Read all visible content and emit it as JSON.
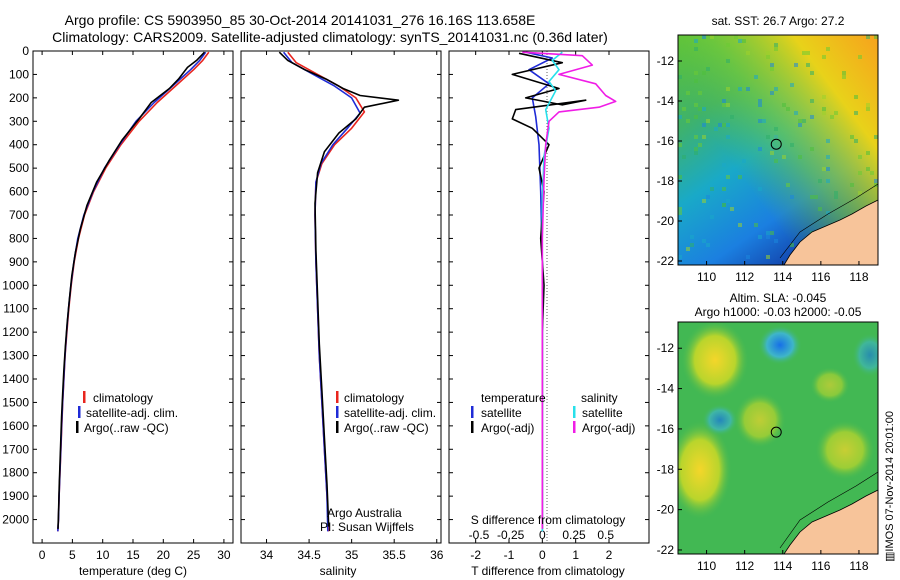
{
  "header": {
    "title_line1": "Argo profile: CS 5903950_85 30-Oct-2014 20141031_276 16.16S 113.658E",
    "title_line2": "Climatology: CARS2009. Satellite-adjusted climatology: synTS_20141031.nc (0.36d later)"
  },
  "colors": {
    "climatology": "#e8251e",
    "satellite": "#1f2bd6",
    "argo": "#000000",
    "sal_satellite": "#27e0ea",
    "sal_argo": "#f01de6",
    "land": "#f7c49a"
  },
  "chart_data": [
    {
      "type": "line",
      "panel": "temperature",
      "xlabel": "temperature (deg C)",
      "ylabel": "",
      "xlim": [
        -1.5,
        31.5
      ],
      "ylim": [
        2100,
        0
      ],
      "x_ticks": [
        0,
        5,
        10,
        15,
        20,
        25,
        30
      ],
      "y_ticks": [
        0,
        100,
        200,
        300,
        400,
        500,
        600,
        700,
        800,
        900,
        1000,
        1100,
        1200,
        1300,
        1400,
        1500,
        1600,
        1700,
        1800,
        1900,
        2000
      ],
      "legend": [
        "climatology",
        "satellite-adj. clim.",
        "Argo(..raw -QC)"
      ],
      "series": [
        {
          "name": "climatology",
          "color": "#e8251e",
          "points": [
            [
              27.5,
              5
            ],
            [
              26.5,
              40
            ],
            [
              25,
              80
            ],
            [
              22,
              150
            ],
            [
              19,
              220
            ],
            [
              16,
              300
            ],
            [
              13,
              400
            ],
            [
              10.5,
              500
            ],
            [
              8.5,
              600
            ],
            [
              7,
              700
            ],
            [
              6,
              800
            ],
            [
              5.3,
              900
            ],
            [
              4.8,
              1000
            ],
            [
              4.4,
              1100
            ],
            [
              4.1,
              1200
            ],
            [
              3.8,
              1300
            ],
            [
              3.6,
              1400
            ],
            [
              3.4,
              1500
            ],
            [
              3.25,
              1600
            ],
            [
              3.1,
              1700
            ],
            [
              2.95,
              1800
            ],
            [
              2.8,
              1900
            ],
            [
              2.7,
              2000
            ],
            [
              2.6,
              2050
            ]
          ]
        },
        {
          "name": "satellite-adj. clim.",
          "color": "#1f2bd6",
          "points": [
            [
              27,
              5
            ],
            [
              26,
              40
            ],
            [
              24.5,
              80
            ],
            [
              21.5,
              150
            ],
            [
              18.5,
              220
            ],
            [
              15.5,
              300
            ],
            [
              12.8,
              400
            ],
            [
              10.3,
              500
            ],
            [
              8.4,
              600
            ],
            [
              6.9,
              700
            ],
            [
              5.9,
              800
            ],
            [
              5.25,
              900
            ],
            [
              4.75,
              1000
            ],
            [
              4.35,
              1100
            ],
            [
              4.05,
              1200
            ],
            [
              3.78,
              1300
            ],
            [
              3.58,
              1400
            ],
            [
              3.38,
              1500
            ],
            [
              3.22,
              1600
            ],
            [
              3.08,
              1700
            ],
            [
              2.94,
              1800
            ],
            [
              2.8,
              1900
            ],
            [
              2.7,
              2000
            ],
            [
              2.6,
              2050
            ]
          ]
        },
        {
          "name": "Argo(..raw -QC)",
          "color": "#000000",
          "points": [
            [
              26.8,
              5
            ],
            [
              25.5,
              40
            ],
            [
              24,
              70
            ],
            [
              22.5,
              120
            ],
            [
              21,
              160
            ],
            [
              18,
              220
            ],
            [
              16,
              290
            ],
            [
              13.2,
              380
            ],
            [
              11,
              470
            ],
            [
              9,
              560
            ],
            [
              7.4,
              660
            ],
            [
              6.3,
              760
            ],
            [
              5.5,
              860
            ],
            [
              4.9,
              960
            ],
            [
              4.5,
              1060
            ],
            [
              4.15,
              1160
            ],
            [
              3.85,
              1260
            ],
            [
              3.6,
              1360
            ],
            [
              3.4,
              1460
            ],
            [
              3.22,
              1560
            ],
            [
              3.08,
              1660
            ],
            [
              2.95,
              1760
            ],
            [
              2.82,
              1860
            ],
            [
              2.72,
              1960
            ],
            [
              2.62,
              2040
            ]
          ]
        }
      ]
    },
    {
      "type": "line",
      "panel": "salinity",
      "xlabel": "salinity",
      "ylabel": "",
      "xlim": [
        33.7,
        36.05
      ],
      "ylim": [
        2100,
        0
      ],
      "x_ticks": [
        34,
        34.5,
        35,
        35.5,
        36
      ],
      "legend": [
        "climatology",
        "satellite-adj. clim.",
        "Argo(..raw -QC)"
      ],
      "annotation": [
        "Argo Australia",
        "PI: Susan Wijffels"
      ],
      "series": [
        {
          "name": "climatology",
          "color": "#e8251e",
          "points": [
            [
              34.25,
              5
            ],
            [
              34.35,
              50
            ],
            [
              34.6,
              100
            ],
            [
              34.85,
              150
            ],
            [
              35.05,
              200
            ],
            [
              35.15,
              260
            ],
            [
              35.0,
              330
            ],
            [
              34.8,
              400
            ],
            [
              34.65,
              480
            ],
            [
              34.58,
              560
            ],
            [
              34.57,
              700
            ],
            [
              34.58,
              900
            ],
            [
              34.6,
              1100
            ],
            [
              34.62,
              1300
            ],
            [
              34.65,
              1500
            ],
            [
              34.68,
              1700
            ],
            [
              34.71,
              1900
            ],
            [
              34.73,
              2050
            ]
          ]
        },
        {
          "name": "satellite-adj. clim.",
          "color": "#1f2bd6",
          "points": [
            [
              34.2,
              5
            ],
            [
              34.3,
              50
            ],
            [
              34.55,
              100
            ],
            [
              34.8,
              150
            ],
            [
              35.0,
              200
            ],
            [
              35.1,
              265
            ],
            [
              34.95,
              330
            ],
            [
              34.78,
              400
            ],
            [
              34.64,
              480
            ],
            [
              34.58,
              560
            ],
            [
              34.57,
              700
            ],
            [
              34.58,
              900
            ],
            [
              34.6,
              1100
            ],
            [
              34.62,
              1300
            ],
            [
              34.65,
              1500
            ],
            [
              34.68,
              1700
            ],
            [
              34.71,
              1900
            ],
            [
              34.72,
              2050
            ]
          ]
        },
        {
          "name": "Argo(..raw -QC)",
          "color": "#000000",
          "points": [
            [
              34.15,
              5
            ],
            [
              34.25,
              40
            ],
            [
              34.45,
              80
            ],
            [
              34.7,
              120
            ],
            [
              34.9,
              160
            ],
            [
              35.1,
              190
            ],
            [
              35.55,
              210
            ],
            [
              35.15,
              240
            ],
            [
              35.05,
              290
            ],
            [
              34.85,
              350
            ],
            [
              34.68,
              430
            ],
            [
              34.6,
              520
            ],
            [
              34.57,
              650
            ],
            [
              34.58,
              850
            ],
            [
              34.6,
              1050
            ],
            [
              34.62,
              1250
            ],
            [
              34.65,
              1450
            ],
            [
              34.68,
              1650
            ],
            [
              34.71,
              1850
            ],
            [
              34.73,
              2030
            ]
          ]
        }
      ]
    },
    {
      "type": "line",
      "panel": "difference",
      "xlabel": "T difference from climatology",
      "xlabel_top": "S difference from climatology",
      "ylabel": "",
      "xlim": [
        -2.8,
        3.2
      ],
      "ylim": [
        2100,
        0
      ],
      "x_ticks": [
        -2,
        -1,
        0,
        1,
        2
      ],
      "s_ticks": [
        "-0.5",
        "-0.25",
        "0",
        "0.25",
        "0.5"
      ],
      "legend": [
        "temperature",
        "satellite",
        "Argo(-adj)",
        "salinity",
        "satellite",
        "Argo(-adj)"
      ],
      "series": [
        {
          "name": "temperature satellite",
          "color": "#1f2bd6",
          "points": [
            [
              -0.5,
              5
            ],
            [
              0.3,
              30
            ],
            [
              -0.4,
              80
            ],
            [
              0.2,
              140
            ],
            [
              -0.3,
              200
            ],
            [
              -0.2,
              280
            ],
            [
              -0.1,
              400
            ],
            [
              -0.05,
              600
            ],
            [
              0,
              900
            ],
            [
              0,
              1300
            ],
            [
              0,
              1700
            ],
            [
              0,
              2050
            ]
          ]
        },
        {
          "name": "temperature Argo(-adj)",
          "color": "#000000",
          "points": [
            [
              -0.7,
              10
            ],
            [
              0.6,
              50
            ],
            [
              -0.9,
              100
            ],
            [
              0.5,
              160
            ],
            [
              -0.5,
              200
            ],
            [
              0.6,
              230
            ],
            [
              1.3,
              210
            ],
            [
              -0.8,
              250
            ],
            [
              -0.9,
              290
            ],
            [
              -0.3,
              330
            ],
            [
              0.2,
              400
            ],
            [
              -0.1,
              500
            ],
            [
              0.05,
              600
            ],
            [
              -0.05,
              800
            ],
            [
              0.05,
              1000
            ],
            [
              0,
              1200
            ],
            [
              0,
              1500
            ],
            [
              0,
              2040
            ]
          ]
        },
        {
          "name": "salinity satellite",
          "color": "#27e0ea",
          "points": [
            [
              0.6,
              5
            ],
            [
              0.3,
              40
            ],
            [
              0.5,
              80
            ],
            [
              0.2,
              130
            ],
            [
              0.4,
              170
            ],
            [
              0.1,
              250
            ],
            [
              0.2,
              330
            ],
            [
              0.05,
              450
            ],
            [
              0,
              650
            ],
            [
              0,
              1000
            ],
            [
              0,
              1400
            ],
            [
              0,
              2050
            ]
          ]
        },
        {
          "name": "salinity Argo(-adj)",
          "color": "#f01de6",
          "points": [
            [
              -0.6,
              5
            ],
            [
              1.2,
              20
            ],
            [
              1.5,
              60
            ],
            [
              0.5,
              100
            ],
            [
              1.6,
              140
            ],
            [
              1.9,
              190
            ],
            [
              2.2,
              215
            ],
            [
              1.7,
              240
            ],
            [
              0.5,
              260
            ],
            [
              0.2,
              300
            ],
            [
              0.1,
              400
            ],
            [
              0.05,
              550
            ],
            [
              0,
              800
            ],
            [
              0,
              1200
            ],
            [
              0,
              1600
            ],
            [
              0,
              2040
            ]
          ]
        }
      ]
    },
    {
      "type": "heatmap",
      "panel": "sst-map",
      "title": "sat. SST: 26.7 Argo: 27.2",
      "xlim": [
        108.5,
        119
      ],
      "ylim": [
        -22.2,
        -10.7
      ],
      "x_ticks": [
        110,
        112,
        114,
        116,
        118
      ],
      "y_ticks": [
        -12,
        -14,
        -16,
        -18,
        -20,
        -22
      ],
      "marker": {
        "lon": 113.658,
        "lat": -16.16
      }
    },
    {
      "type": "heatmap",
      "panel": "sla-map",
      "title_line1": "Altim. SLA: -0.045",
      "title_line2": "Argo h1000: -0.03 h2000: -0.05",
      "xlim": [
        108.5,
        119
      ],
      "ylim": [
        -22.2,
        -10.7
      ],
      "x_ticks": [
        110,
        112,
        114,
        116,
        118
      ],
      "y_ticks": [
        -12,
        -14,
        -16,
        -18,
        -20,
        -22
      ],
      "marker": {
        "lon": 113.658,
        "lat": -16.16
      },
      "side_label": "▥IMOS 07-Nov-2014 20:01:00"
    }
  ]
}
